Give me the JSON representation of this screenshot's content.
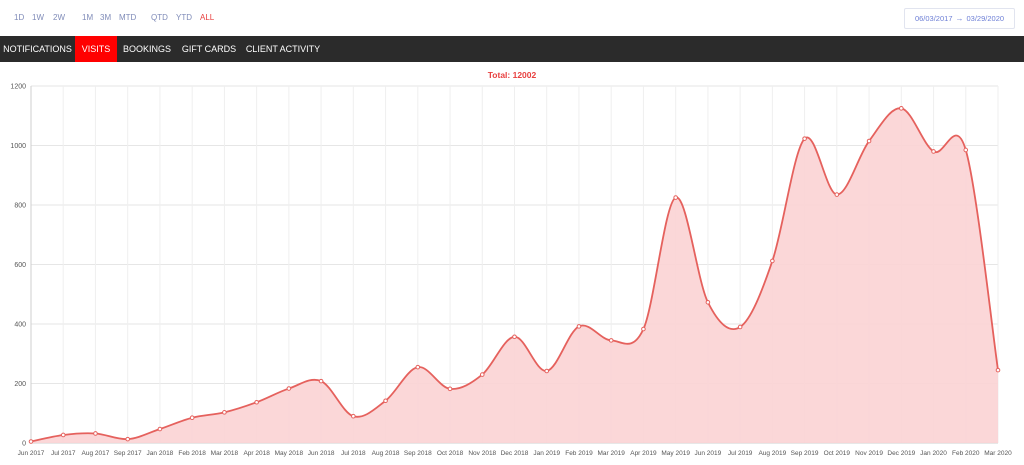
{
  "range_buttons": [
    {
      "label": "1D",
      "active": false
    },
    {
      "label": "1W",
      "active": false
    },
    {
      "label": "2W",
      "active": false
    },
    {
      "label": "1M",
      "active": false
    },
    {
      "label": "3M",
      "active": false
    },
    {
      "label": "MTD",
      "active": false
    },
    {
      "label": "QTD",
      "active": false
    },
    {
      "label": "YTD",
      "active": false
    },
    {
      "label": "ALL",
      "active": true
    }
  ],
  "date_range": {
    "start": "06/03/2017",
    "arrow": "→",
    "end": "03/29/2020"
  },
  "tabs": [
    {
      "label": "NOTIFICATIONS",
      "active": false
    },
    {
      "label": "VISITS",
      "active": true
    },
    {
      "label": "BOOKINGS",
      "active": false
    },
    {
      "label": "GIFT CARDS",
      "active": false
    },
    {
      "label": "CLIENT ACTIVITY",
      "active": false
    }
  ],
  "colors": {
    "line": "#e5615d",
    "fill": "#fbd3d4",
    "title": "#e8403f",
    "tab_active": "#ff0000",
    "tab_bar": "#2b2b2b",
    "range_text": "#7f8bb8",
    "range_active": "#e8403f"
  },
  "chart_data": {
    "type": "area",
    "title": "Total: 12002",
    "xlabel": "",
    "ylabel": "",
    "ylim": [
      0,
      1200
    ],
    "yticks": [
      0,
      200,
      400,
      600,
      800,
      1000,
      1200
    ],
    "grid": true,
    "categories": [
      "Jun 2017",
      "Jul 2017",
      "Aug 2017",
      "Sep 2017",
      "Jan 2018",
      "Feb 2018",
      "Mar 2018",
      "Apr 2018",
      "May 2018",
      "Jun 2018",
      "Jul 2018",
      "Aug 2018",
      "Sep 2018",
      "Oct 2018",
      "Nov 2018",
      "Dec 2018",
      "Jan 2019",
      "Feb 2019",
      "Mar 2019",
      "Apr 2019",
      "May 2019",
      "Jun 2019",
      "Jul 2019",
      "Aug 2019",
      "Sep 2019",
      "Oct 2019",
      "Nov 2019",
      "Dec 2019",
      "Jan 2020",
      "Feb 2020",
      "Mar 2020"
    ],
    "values": [
      5,
      27,
      32,
      13,
      47,
      85,
      103,
      137,
      183,
      208,
      90,
      142,
      255,
      182,
      230,
      357,
      242,
      392,
      345,
      383,
      825,
      473,
      390,
      612,
      1023,
      835,
      1015,
      1125,
      980,
      985,
      245
    ]
  }
}
